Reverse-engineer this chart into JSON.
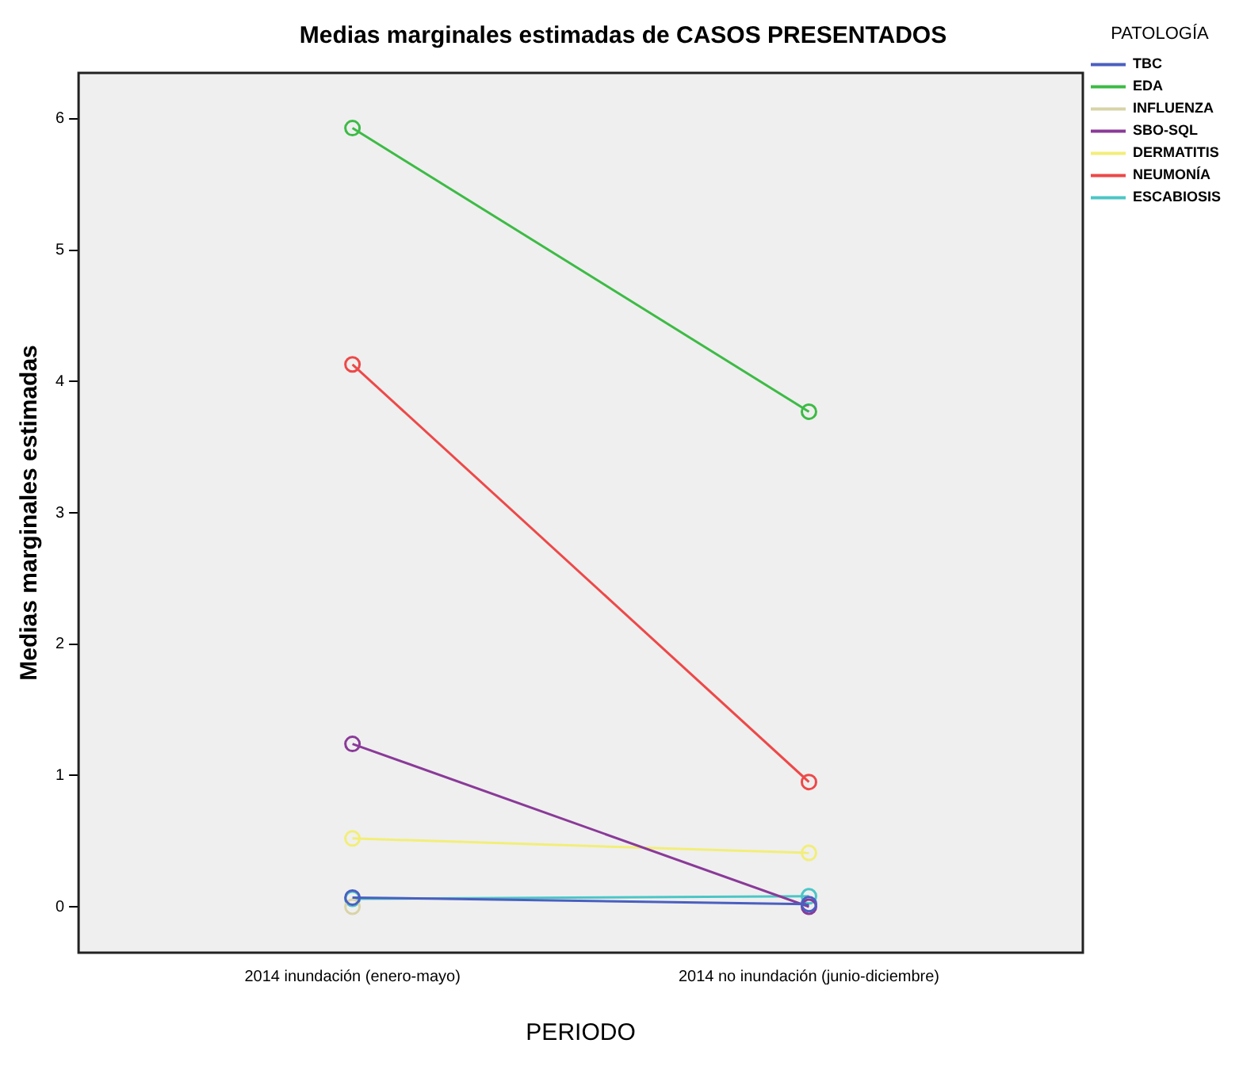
{
  "chart_data": {
    "type": "line",
    "title": "Medias marginales estimadas de CASOS PRESENTADOS",
    "xlabel": "PERIODO",
    "ylabel": "Medias marginales estimadas",
    "legend_title": "PATOLOGÍA",
    "categories": [
      "2014 inundación (enero-mayo)",
      "2014 no inundación (junio-diciembre)"
    ],
    "series": [
      {
        "name": "TBC",
        "color": "#4a5fc0",
        "values": [
          0.07,
          0.02
        ]
      },
      {
        "name": "EDA",
        "color": "#3dbb45",
        "values": [
          5.93,
          3.77
        ]
      },
      {
        "name": "INFLUENZA",
        "color": "#d8d4a8",
        "values": [
          0.0,
          null
        ]
      },
      {
        "name": "SBO-SQL",
        "color": "#8a3a98",
        "values": [
          1.24,
          0.0
        ]
      },
      {
        "name": "DERMATITIS",
        "color": "#f2ee78",
        "values": [
          0.52,
          0.41
        ]
      },
      {
        "name": "NEUMONÍA",
        "color": "#ee4848",
        "values": [
          4.13,
          0.95
        ]
      },
      {
        "name": "ESCABIOSIS",
        "color": "#4cc6c6",
        "values": [
          0.06,
          0.08
        ]
      }
    ],
    "ylim": [
      -0.35,
      6.35
    ],
    "yticks": [
      0,
      1,
      2,
      3,
      4,
      5,
      6
    ],
    "grid": false,
    "legend": "right",
    "marker": "circle",
    "line_style": "solid"
  }
}
